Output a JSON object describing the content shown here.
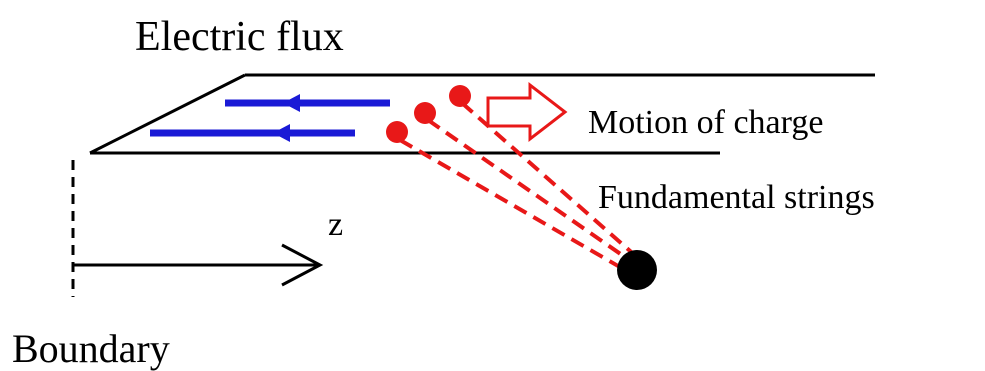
{
  "labels": {
    "title": "Electric flux",
    "motion": "Motion of charge",
    "strings": "Fundamental strings",
    "axis": "z",
    "boundary": "Boundary"
  }
}
